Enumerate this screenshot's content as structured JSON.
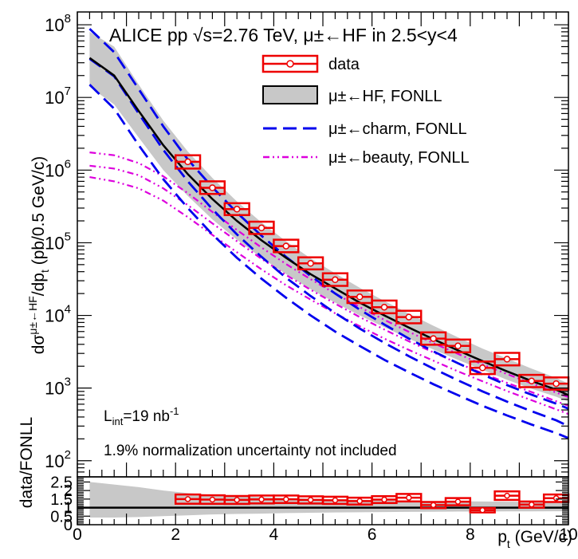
{
  "chart_data": [
    {
      "type": "line",
      "title": "ALICE pp √s=2.76 TeV, μ±←HF in 2.5<y<4",
      "xlabel": "pt (GeV/c)",
      "ylabel": "dσμ±←HF/dpt (pb/0.5 GeV/c)",
      "xlim": [
        0,
        10
      ],
      "ylim": [
        60,
        150000000
      ],
      "yscale": "log",
      "legend_position": "top-right",
      "legend": [
        {
          "key": "data",
          "label": "data",
          "color": "#ee0000"
        },
        {
          "key": "hf",
          "label": "μ±←HF, FONLL",
          "color": "#c8c8c8"
        },
        {
          "key": "charm",
          "label": "μ±←charm, FONLL",
          "color": "#0000ee"
        },
        {
          "key": "beauty",
          "label": "μ±←beauty, FONLL",
          "color": "#dd00dd"
        }
      ],
      "annotations": {
        "lumi": "L",
        "lumi_sub": "int",
        "lumi_rest": "=19 nb",
        "lumi_sup": "-1",
        "norm_note": "1.9% normalization uncertainty not included"
      },
      "x_ticks": [
        0,
        2,
        4,
        6,
        8,
        10
      ],
      "y_ticks": [
        {
          "value": 100,
          "base": "10",
          "exp": "2"
        },
        {
          "value": 1000,
          "base": "10",
          "exp": "3"
        },
        {
          "value": 10000,
          "base": "10",
          "exp": "4"
        },
        {
          "value": 100000,
          "base": "10",
          "exp": "5"
        },
        {
          "value": 1000000,
          "base": "10",
          "exp": "6"
        },
        {
          "value": 10000000,
          "base": "10",
          "exp": "7"
        },
        {
          "value": 100000000,
          "base": "10",
          "exp": "8"
        }
      ],
      "data_points": [
        {
          "x": 2.25,
          "y": 1300000,
          "xerr": 0.25,
          "sys_lo": 1050000,
          "sys_hi": 1600000
        },
        {
          "x": 2.75,
          "y": 570000,
          "xerr": 0.25,
          "sys_lo": 470000,
          "sys_hi": 700000
        },
        {
          "x": 3.25,
          "y": 290000,
          "xerr": 0.25,
          "sys_lo": 240000,
          "sys_hi": 350000
        },
        {
          "x": 3.75,
          "y": 160000,
          "xerr": 0.25,
          "sys_lo": 132000,
          "sys_hi": 195000
        },
        {
          "x": 4.25,
          "y": 90000,
          "xerr": 0.25,
          "sys_lo": 74000,
          "sys_hi": 110000
        },
        {
          "x": 4.75,
          "y": 52000,
          "xerr": 0.25,
          "sys_lo": 43000,
          "sys_hi": 63000
        },
        {
          "x": 5.25,
          "y": 31000,
          "xerr": 0.25,
          "sys_lo": 25500,
          "sys_hi": 38000
        },
        {
          "x": 5.75,
          "y": 18000,
          "xerr": 0.25,
          "sys_lo": 14800,
          "sys_hi": 22000
        },
        {
          "x": 6.25,
          "y": 13000,
          "xerr": 0.25,
          "sys_lo": 10700,
          "sys_hi": 16000
        },
        {
          "x": 6.75,
          "y": 9500,
          "xerr": 0.25,
          "sys_lo": 7800,
          "sys_hi": 11600
        },
        {
          "x": 7.25,
          "y": 4800,
          "xerr": 0.25,
          "sys_lo": 3950,
          "sys_hi": 5850
        },
        {
          "x": 7.75,
          "y": 3800,
          "xerr": 0.25,
          "sys_lo": 3100,
          "sys_hi": 4650
        },
        {
          "x": 8.25,
          "y": 1900,
          "xerr": 0.25,
          "sys_lo": 1560,
          "sys_hi": 2320
        },
        {
          "x": 8.75,
          "y": 2500,
          "xerr": 0.25,
          "sys_lo": 2050,
          "sys_hi": 3050
        },
        {
          "x": 9.25,
          "y": 1250,
          "xerr": 0.25,
          "sys_lo": 1030,
          "sys_hi": 1520
        },
        {
          "x": 9.75,
          "y": 1150,
          "xerr": 0.25,
          "sys_lo": 950,
          "sys_hi": 1400
        }
      ],
      "fonll_hf": {
        "x": [
          0.25,
          0.75,
          1.25,
          1.75,
          2.25,
          2.75,
          3.25,
          3.75,
          4.25,
          4.75,
          5.25,
          5.75,
          6.25,
          6.75,
          7.25,
          7.75,
          8.25,
          8.75,
          9.25,
          9.75,
          10.0
        ],
        "central": [
          35000000,
          20000000,
          6500000,
          2200000,
          880000,
          400000,
          200000,
          108000,
          62000,
          37000,
          23500,
          15000,
          10000,
          6800,
          4700,
          3300,
          2350,
          1700,
          1250,
          950,
          800
        ],
        "lower": [
          14000000,
          8000000,
          2800000,
          1000000,
          440000,
          210000,
          110000,
          62000,
          37000,
          23000,
          15000,
          10000,
          6900,
          4800,
          3400,
          2450,
          1780,
          1300,
          980,
          760,
          650
        ],
        "upper": [
          80000000,
          50000000,
          15000000,
          4800000,
          1800000,
          780000,
          370000,
          190000,
          105000,
          61000,
          38000,
          24000,
          15800,
          10600,
          7200,
          5000,
          3500,
          2550,
          1850,
          1380,
          1150
        ]
      },
      "fonll_charm": {
        "x": [
          0.25,
          0.75,
          1.25,
          1.75,
          2.25,
          2.75,
          3.25,
          3.75,
          4.25,
          4.75,
          5.25,
          5.75,
          6.25,
          6.75,
          7.25,
          7.75,
          8.25,
          8.75,
          9.25,
          9.75,
          10.0
        ],
        "central": [
          34000000,
          19500000,
          6000000,
          1900000,
          700000,
          290000,
          130000,
          64000,
          33000,
          18500,
          10800,
          6600,
          4200,
          2750,
          1850,
          1280,
          900,
          650,
          480,
          360,
          300
        ],
        "lower": [
          15000000,
          7000000,
          2200000,
          750000,
          300000,
          130000,
          62000,
          32000,
          17500,
          10000,
          6000,
          3800,
          2450,
          1650,
          1130,
          800,
          570,
          420,
          315,
          240,
          205
        ],
        "upper": [
          88000000,
          42000000,
          13000000,
          4000000,
          1400000,
          580000,
          260000,
          125000,
          64000,
          35000,
          20000,
          12000,
          7500,
          4800,
          3200,
          2200,
          1540,
          1100,
          810,
          610,
          520
        ]
      },
      "fonll_beauty": {
        "x": [
          0.25,
          0.75,
          1.25,
          1.75,
          2.25,
          2.75,
          3.25,
          3.75,
          4.25,
          4.75,
          5.25,
          5.75,
          6.25,
          6.75,
          7.25,
          7.75,
          8.25,
          8.75,
          9.25,
          9.75,
          10.0
        ],
        "central": [
          1150000,
          1050000,
          850000,
          560000,
          330000,
          185000,
          105000,
          60000,
          36000,
          22500,
          14500,
          9500,
          6400,
          4400,
          3100,
          2200,
          1600,
          1180,
          880,
          660,
          570
        ],
        "lower": [
          800000,
          700000,
          560000,
          380000,
          225000,
          128000,
          74000,
          43000,
          26000,
          16500,
          10700,
          7100,
          4800,
          3350,
          2380,
          1700,
          1240,
          910,
          680,
          510,
          440
        ],
        "upper": [
          1750000,
          1600000,
          1250000,
          820000,
          480000,
          265000,
          150000,
          86000,
          51000,
          31500,
          20000,
          13000,
          8700,
          5950,
          4150,
          2950,
          2120,
          1560,
          1160,
          870,
          750
        ]
      }
    },
    {
      "type": "scatter",
      "ylabel": "data/FONLL",
      "xlabel": "pt (GeV/c)",
      "xlim": [
        0,
        10
      ],
      "ylim": [
        0,
        2.8
      ],
      "x_ticks": [
        0,
        2,
        4,
        6,
        8,
        10
      ],
      "y_ticks": [
        0,
        0.5,
        1,
        1.5,
        2,
        2.5
      ],
      "reference_line": 1,
      "band": {
        "x": [
          0.25,
          0.75,
          1.25,
          1.75,
          2.25,
          2.75,
          3.25,
          3.75,
          4.25,
          4.75,
          5.25,
          5.75,
          6.25,
          6.75,
          7.25,
          7.75,
          8.25,
          8.75,
          9.25,
          9.75,
          10.0
        ],
        "lower": [
          0.42,
          0.42,
          0.45,
          0.5,
          0.55,
          0.6,
          0.63,
          0.65,
          0.68,
          0.7,
          0.72,
          0.73,
          0.74,
          0.75,
          0.76,
          0.77,
          0.77,
          0.78,
          0.78,
          0.79,
          0.79
        ],
        "upper": [
          2.5,
          2.35,
          2.2,
          2.0,
          1.85,
          1.75,
          1.68,
          1.62,
          1.57,
          1.52,
          1.48,
          1.45,
          1.42,
          1.4,
          1.38,
          1.37,
          1.36,
          1.35,
          1.34,
          1.33,
          1.33
        ]
      },
      "points": [
        {
          "x": 2.25,
          "y": 1.5,
          "xerr": 0.25,
          "stat": 0.03,
          "sys_lo": 1.23,
          "sys_hi": 1.77
        },
        {
          "x": 2.75,
          "y": 1.47,
          "xerr": 0.25,
          "stat": 0.03,
          "sys_lo": 1.22,
          "sys_hi": 1.72
        },
        {
          "x": 3.25,
          "y": 1.45,
          "xerr": 0.25,
          "stat": 0.03,
          "sys_lo": 1.22,
          "sys_hi": 1.68
        },
        {
          "x": 3.75,
          "y": 1.48,
          "xerr": 0.25,
          "stat": 0.03,
          "sys_lo": 1.25,
          "sys_hi": 1.71
        },
        {
          "x": 4.25,
          "y": 1.49,
          "xerr": 0.25,
          "stat": 0.04,
          "sys_lo": 1.27,
          "sys_hi": 1.71
        },
        {
          "x": 4.75,
          "y": 1.45,
          "xerr": 0.25,
          "stat": 0.04,
          "sys_lo": 1.24,
          "sys_hi": 1.66
        },
        {
          "x": 5.25,
          "y": 1.43,
          "xerr": 0.25,
          "stat": 0.04,
          "sys_lo": 1.22,
          "sys_hi": 1.64
        },
        {
          "x": 5.75,
          "y": 1.38,
          "xerr": 0.25,
          "stat": 0.05,
          "sys_lo": 1.18,
          "sys_hi": 1.58
        },
        {
          "x": 6.25,
          "y": 1.47,
          "xerr": 0.25,
          "stat": 0.06,
          "sys_lo": 1.27,
          "sys_hi": 1.67
        },
        {
          "x": 6.75,
          "y": 1.58,
          "xerr": 0.25,
          "stat": 0.08,
          "sys_lo": 1.36,
          "sys_hi": 1.8
        },
        {
          "x": 7.25,
          "y": 1.15,
          "xerr": 0.25,
          "stat": 0.08,
          "sys_lo": 0.97,
          "sys_hi": 1.33
        },
        {
          "x": 7.75,
          "y": 1.35,
          "xerr": 0.25,
          "stat": 0.1,
          "sys_lo": 1.14,
          "sys_hi": 1.56
        },
        {
          "x": 8.25,
          "y": 0.85,
          "xerr": 0.25,
          "stat": 0.07,
          "sys_lo": 0.72,
          "sys_hi": 0.98
        },
        {
          "x": 8.75,
          "y": 1.7,
          "xerr": 0.25,
          "stat": 0.15,
          "sys_lo": 1.45,
          "sys_hi": 1.95
        },
        {
          "x": 9.25,
          "y": 1.18,
          "xerr": 0.25,
          "stat": 0.2,
          "sys_lo": 1.0,
          "sys_hi": 1.36
        },
        {
          "x": 9.75,
          "y": 1.55,
          "xerr": 0.25,
          "stat": 0.2,
          "sys_lo": 1.33,
          "sys_hi": 1.77
        }
      ]
    }
  ]
}
